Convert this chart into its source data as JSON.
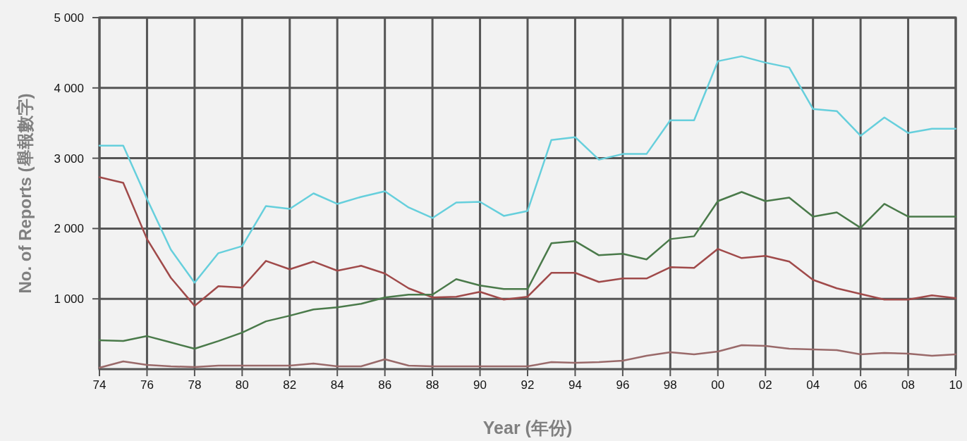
{
  "chart_data": {
    "type": "line",
    "xlabel": "Year (年份)",
    "ylabel": "No. of Reports (舉報數字)",
    "x": [
      1974,
      1975,
      1976,
      1977,
      1978,
      1979,
      1980,
      1981,
      1982,
      1983,
      1984,
      1985,
      1986,
      1987,
      1988,
      1989,
      1990,
      1991,
      1992,
      1993,
      1994,
      1995,
      1996,
      1997,
      1998,
      1999,
      2000,
      2001,
      2002,
      2003,
      2004,
      2005,
      2006,
      2007,
      2008,
      2009,
      2010
    ],
    "series": [
      {
        "color": "#66cfdc",
        "values": [
          3180,
          3180,
          2420,
          1700,
          1230,
          1650,
          1750,
          2320,
          2280,
          2500,
          2350,
          2450,
          2530,
          2300,
          2150,
          2370,
          2380,
          2180,
          2250,
          3260,
          3300,
          2980,
          3060,
          3060,
          3540,
          3540,
          4380,
          4450,
          4360,
          4290,
          3700,
          3670,
          3320,
          3580,
          3360,
          3420,
          3420
        ]
      },
      {
        "color": "#a04a4a",
        "values": [
          2730,
          2650,
          1850,
          1300,
          900,
          1180,
          1160,
          1540,
          1420,
          1530,
          1400,
          1470,
          1360,
          1150,
          1020,
          1030,
          1100,
          990,
          1030,
          1370,
          1370,
          1240,
          1290,
          1290,
          1450,
          1440,
          1710,
          1580,
          1610,
          1530,
          1270,
          1150,
          1070,
          990,
          990,
          1050,
          1010
        ]
      },
      {
        "color": "#4a7a4a",
        "values": [
          410,
          400,
          470,
          380,
          290,
          400,
          520,
          680,
          760,
          850,
          880,
          930,
          1020,
          1060,
          1060,
          1280,
          1190,
          1140,
          1140,
          1790,
          1820,
          1620,
          1640,
          1560,
          1850,
          1890,
          2390,
          2520,
          2390,
          2440,
          2170,
          2230,
          2010,
          2350,
          2170,
          2170,
          2170
        ]
      },
      {
        "color": "#9a6a6a",
        "values": [
          20,
          110,
          60,
          40,
          30,
          50,
          50,
          50,
          50,
          80,
          40,
          40,
          140,
          50,
          40,
          40,
          40,
          40,
          40,
          100,
          90,
          100,
          120,
          190,
          240,
          210,
          250,
          340,
          330,
          290,
          280,
          270,
          210,
          230,
          220,
          190,
          210
        ]
      }
    ],
    "xlim": [
      1974,
      2010
    ],
    "ylim": [
      0,
      5000
    ],
    "xticks": [
      {
        "value": 1974,
        "label": "74"
      },
      {
        "value": 1976,
        "label": "76"
      },
      {
        "value": 1978,
        "label": "78"
      },
      {
        "value": 1980,
        "label": "80"
      },
      {
        "value": 1982,
        "label": "82"
      },
      {
        "value": 1984,
        "label": "84"
      },
      {
        "value": 1986,
        "label": "86"
      },
      {
        "value": 1988,
        "label": "88"
      },
      {
        "value": 1990,
        "label": "90"
      },
      {
        "value": 1992,
        "label": "92"
      },
      {
        "value": 1994,
        "label": "94"
      },
      {
        "value": 1996,
        "label": "96"
      },
      {
        "value": 1998,
        "label": "98"
      },
      {
        "value": 2000,
        "label": "00"
      },
      {
        "value": 2002,
        "label": "02"
      },
      {
        "value": 2004,
        "label": "04"
      },
      {
        "value": 2006,
        "label": "06"
      },
      {
        "value": 2008,
        "label": "08"
      },
      {
        "value": 2010,
        "label": "10"
      }
    ],
    "yticks": [
      {
        "value": 1000,
        "label": "1 000"
      },
      {
        "value": 2000,
        "label": "2 000"
      },
      {
        "value": 3000,
        "label": "3 000"
      },
      {
        "value": 4000,
        "label": "4 000"
      },
      {
        "value": 5000,
        "label": "5 000"
      }
    ],
    "grid": true
  }
}
